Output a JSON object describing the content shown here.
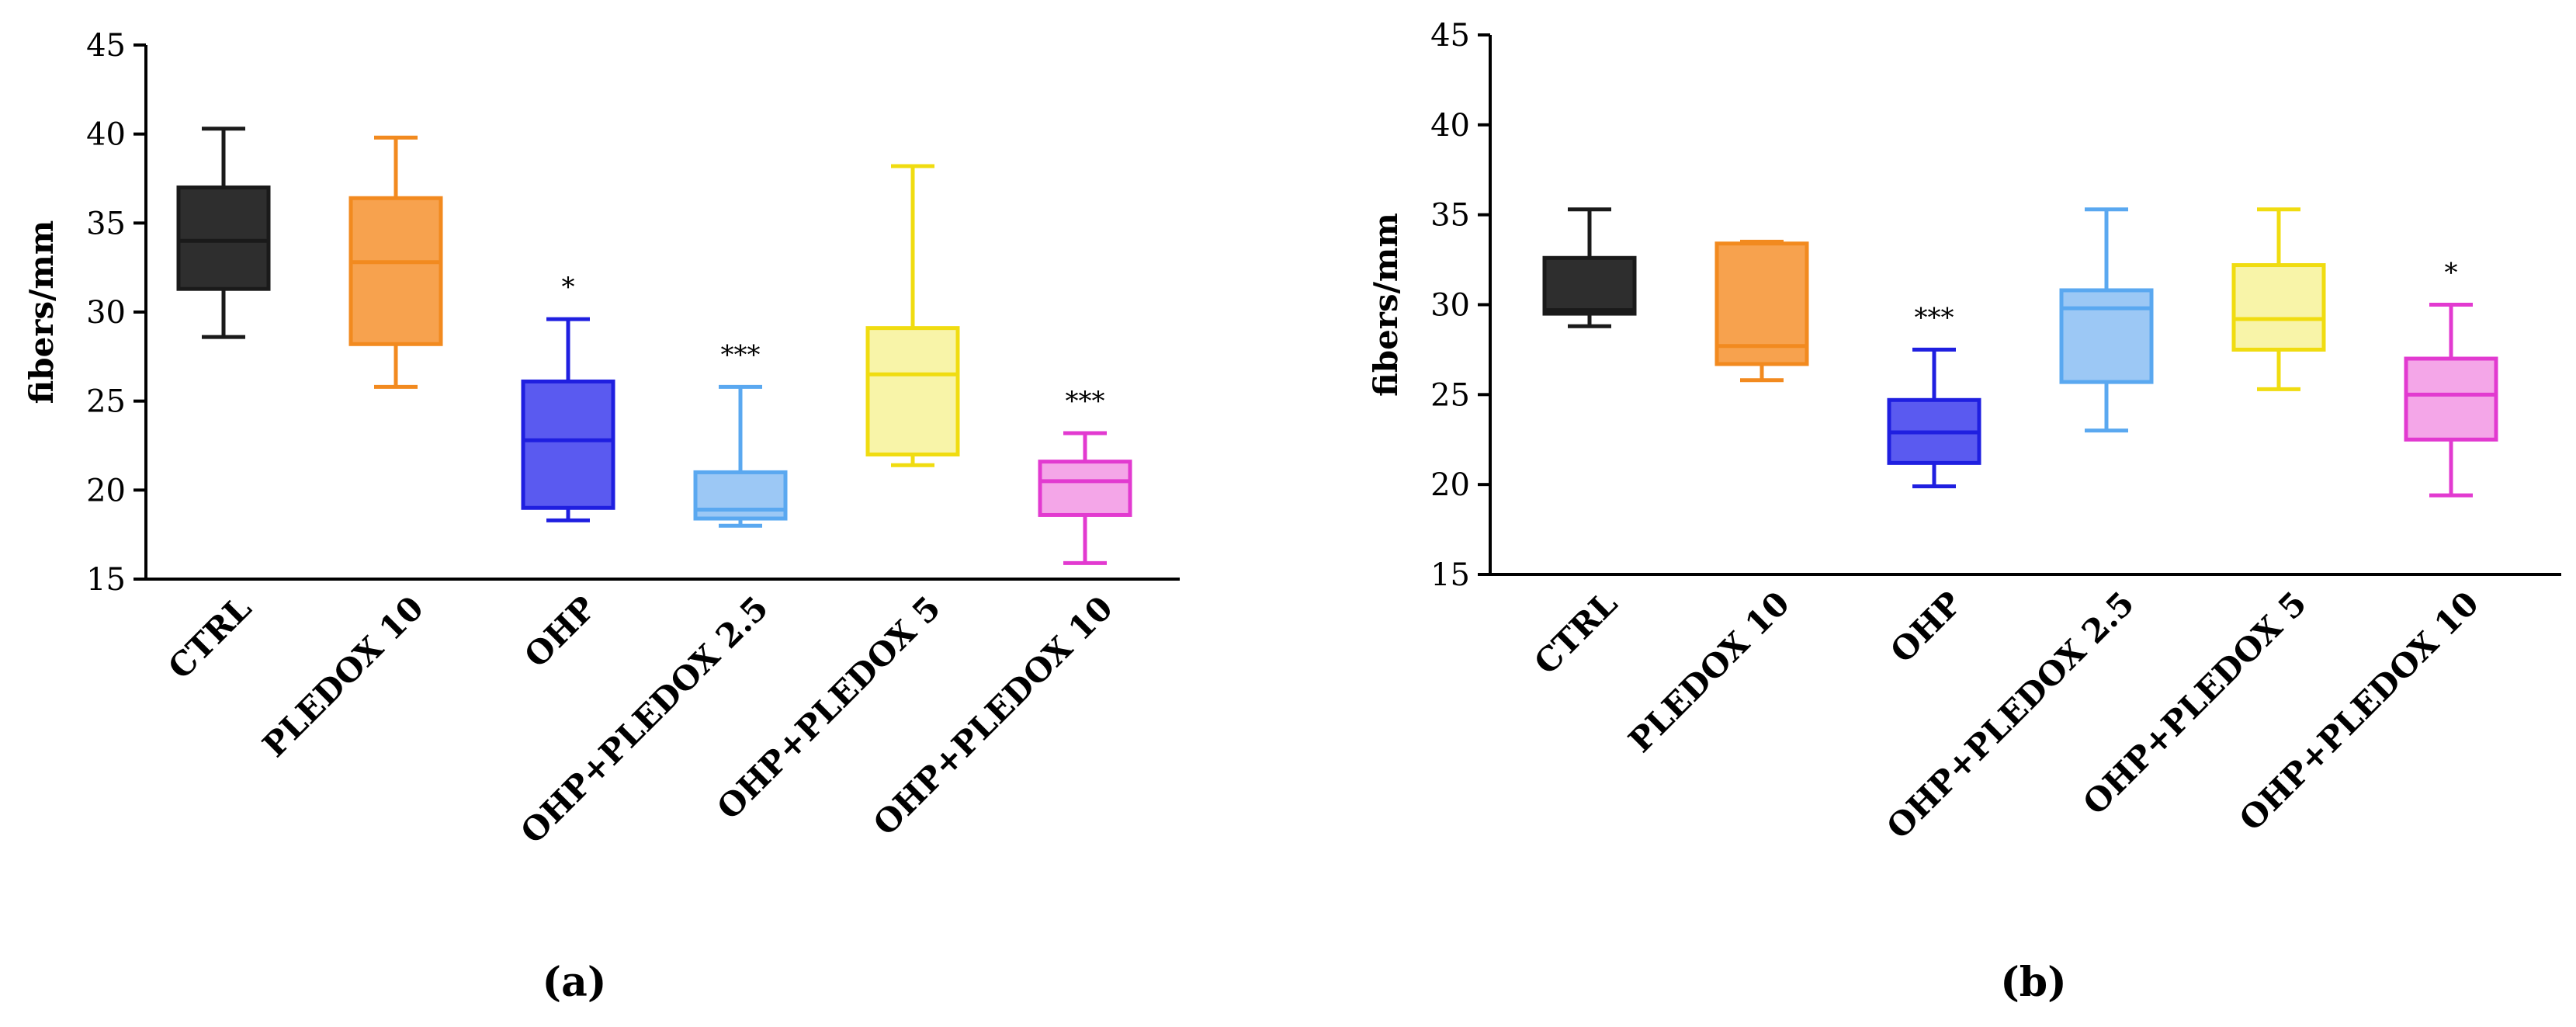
{
  "chart_data": [
    {
      "id": "a",
      "type": "boxplot",
      "panel_label": "(a)",
      "ylabel": "fibers/mm",
      "ylim": [
        15,
        45
      ],
      "yticks": [
        15,
        20,
        25,
        30,
        35,
        40,
        45
      ],
      "categories": [
        "CTRL",
        "PLEDOX 10",
        "OHP",
        "OHP+PLEDOX 2.5",
        "OHP+PLEDOX 5",
        "OHP+PLEDOX 10"
      ],
      "boxes": [
        {
          "min": 28.6,
          "q1": 31.3,
          "median": 34.0,
          "q3": 37.0,
          "max": 40.3,
          "sig": ""
        },
        {
          "min": 25.8,
          "q1": 28.2,
          "median": 32.8,
          "q3": 36.4,
          "max": 39.8,
          "sig": ""
        },
        {
          "min": 18.3,
          "q1": 19.0,
          "median": 22.8,
          "q3": 26.1,
          "max": 29.6,
          "sig": "*"
        },
        {
          "min": 18.0,
          "q1": 18.4,
          "median": 18.9,
          "q3": 21.0,
          "max": 25.8,
          "sig": "***"
        },
        {
          "min": 21.4,
          "q1": 22.0,
          "median": 26.5,
          "q3": 29.1,
          "max": 38.2,
          "sig": ""
        },
        {
          "min": 15.9,
          "q1": 18.6,
          "median": 20.5,
          "q3": 21.6,
          "max": 23.2,
          "sig": "***"
        }
      ]
    },
    {
      "id": "b",
      "type": "boxplot",
      "panel_label": "(b)",
      "ylabel": "fibers/mm",
      "ylim": [
        15,
        45
      ],
      "yticks": [
        15,
        20,
        25,
        30,
        35,
        40,
        45
      ],
      "categories": [
        "CTRL",
        "PLEDOX 10",
        "OHP",
        "OHP+PLEDOX 2.5",
        "OHP+PLEDOX 5",
        "OHP+PLEDOX 10"
      ],
      "boxes": [
        {
          "min": 28.8,
          "q1": 29.5,
          "median": 29.7,
          "q3": 32.6,
          "max": 35.3,
          "sig": ""
        },
        {
          "min": 25.8,
          "q1": 26.7,
          "median": 27.7,
          "q3": 33.4,
          "max": 33.5,
          "sig": ""
        },
        {
          "min": 19.9,
          "q1": 21.2,
          "median": 22.9,
          "q3": 24.7,
          "max": 27.5,
          "sig": "***"
        },
        {
          "min": 23.0,
          "q1": 25.7,
          "median": 29.8,
          "q3": 30.8,
          "max": 35.3,
          "sig": ""
        },
        {
          "min": 25.3,
          "q1": 27.5,
          "median": 29.2,
          "q3": 32.2,
          "max": 35.3,
          "sig": ""
        },
        {
          "min": 19.4,
          "q1": 22.5,
          "median": 25.0,
          "q3": 27.0,
          "max": 30.0,
          "sig": "*"
        }
      ]
    }
  ],
  "colors": [
    {
      "stroke": "#1a1a1a",
      "fill": "#2e2e2e"
    },
    {
      "stroke": "#f28a1f",
      "fill": "#f7a24e"
    },
    {
      "stroke": "#1f1fe0",
      "fill": "#5a5af0"
    },
    {
      "stroke": "#5aa8f0",
      "fill": "#9cc8f5"
    },
    {
      "stroke": "#f0dc10",
      "fill": "#f8f4a8"
    },
    {
      "stroke": "#e23ad0",
      "fill": "#f4a6e8"
    }
  ]
}
